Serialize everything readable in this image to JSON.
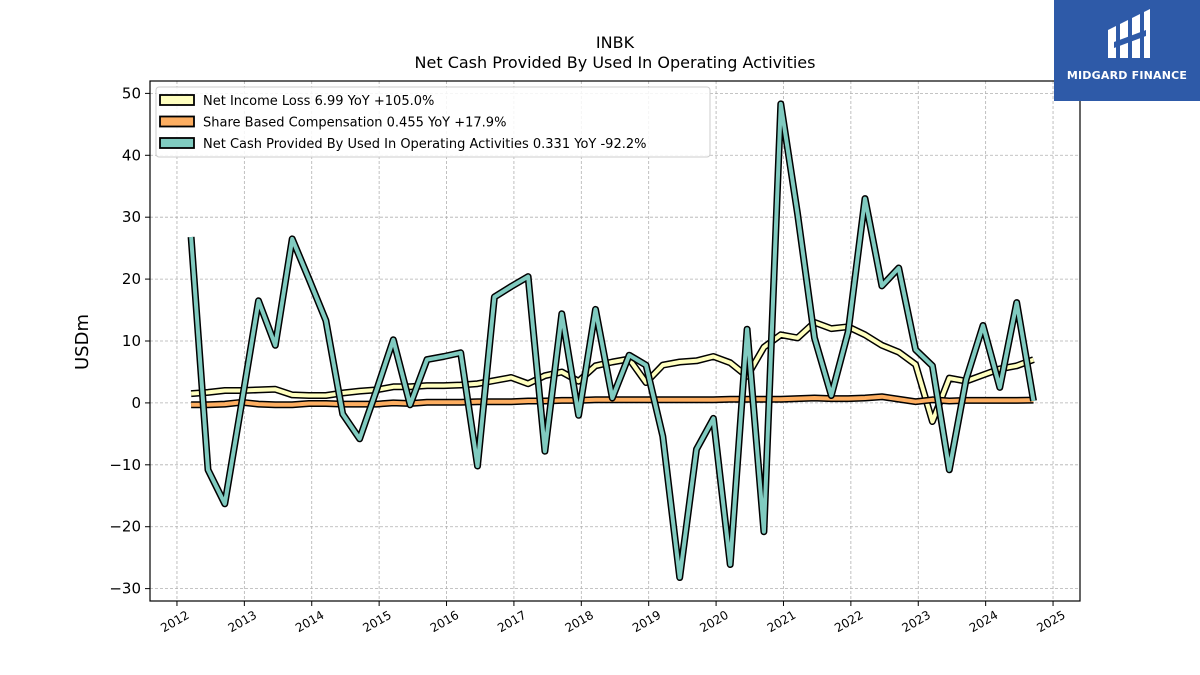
{
  "brand": {
    "name": "MIDGARD FINANCE",
    "bg_color": "#2e5aa8"
  },
  "chart_data": {
    "type": "line",
    "title": "INBK",
    "subtitle": "Net Cash Provided By Used In Operating Activities",
    "xlabel": "",
    "ylabel": "USDm",
    "xlim": [
      2011.6,
      2025.4
    ],
    "ylim": [
      -32,
      52
    ],
    "x_ticks": [
      "2012",
      "2013",
      "2014",
      "2015",
      "2016",
      "2017",
      "2018",
      "2019",
      "2020",
      "2021",
      "2022",
      "2023",
      "2024",
      "2025"
    ],
    "y_ticks": [
      -30,
      -20,
      -10,
      0,
      10,
      20,
      30,
      40,
      50
    ],
    "y_tick_labels": [
      "−30",
      "−20",
      "−10",
      "0",
      "10",
      "20",
      "30",
      "40",
      "50"
    ],
    "grid": true,
    "legend_position": "top-left",
    "series": [
      {
        "name": "Net Income Loss  6.99 YoY +105.0%",
        "color": "#ffffbf",
        "x": [
          2012.21,
          2012.46,
          2012.71,
          2012.96,
          2013.21,
          2013.46,
          2013.71,
          2013.96,
          2014.21,
          2014.46,
          2014.71,
          2014.96,
          2015.21,
          2015.46,
          2015.71,
          2015.96,
          2016.21,
          2016.46,
          2016.71,
          2016.96,
          2017.21,
          2017.46,
          2017.71,
          2017.96,
          2018.21,
          2018.46,
          2018.71,
          2018.96,
          2019.21,
          2019.46,
          2019.71,
          2019.96,
          2020.21,
          2020.46,
          2020.71,
          2020.96,
          2021.21,
          2021.46,
          2021.71,
          2021.96,
          2022.21,
          2022.46,
          2022.71,
          2022.96,
          2023.21,
          2023.46,
          2023.71,
          2023.96,
          2024.21,
          2024.46,
          2024.71
        ],
        "y": [
          1.5,
          1.7,
          2.0,
          2.0,
          2.1,
          2.2,
          1.3,
          1.2,
          1.2,
          1.6,
          1.9,
          2.1,
          2.6,
          2.6,
          2.8,
          2.8,
          2.9,
          3.1,
          3.6,
          4.1,
          3.1,
          4.4,
          5.0,
          3.5,
          6.0,
          6.6,
          7.1,
          3.3,
          6.1,
          6.6,
          6.8,
          7.5,
          6.5,
          4.3,
          9.0,
          11.0,
          10.5,
          13.0,
          12.0,
          12.3,
          11.0,
          9.3,
          8.2,
          6.2,
          -3.0,
          4.0,
          3.5,
          4.5,
          5.5,
          6.0,
          7.0
        ]
      },
      {
        "name": "Share Based Compensation  0.455 YoY +17.9%",
        "color": "#fdae61",
        "x": [
          2012.21,
          2012.46,
          2012.71,
          2012.96,
          2013.21,
          2013.46,
          2013.71,
          2013.96,
          2014.21,
          2014.46,
          2014.71,
          2014.96,
          2015.21,
          2015.46,
          2015.71,
          2015.96,
          2016.21,
          2016.46,
          2016.71,
          2016.96,
          2017.21,
          2017.46,
          2017.71,
          2017.96,
          2018.21,
          2018.46,
          2018.71,
          2018.96,
          2019.21,
          2019.46,
          2019.71,
          2019.96,
          2020.21,
          2020.46,
          2020.71,
          2020.96,
          2021.21,
          2021.46,
          2021.71,
          2021.96,
          2022.21,
          2022.46,
          2022.71,
          2022.96,
          2023.21,
          2023.46,
          2023.71,
          2023.96,
          2024.21,
          2024.46,
          2024.71
        ],
        "y": [
          -0.3,
          -0.3,
          -0.2,
          0.1,
          -0.2,
          -0.3,
          -0.3,
          -0.1,
          -0.1,
          -0.2,
          -0.2,
          -0.2,
          0.0,
          -0.1,
          0.1,
          0.1,
          0.1,
          0.2,
          0.2,
          0.2,
          0.3,
          0.3,
          0.4,
          0.4,
          0.5,
          0.5,
          0.5,
          0.5,
          0.5,
          0.5,
          0.5,
          0.5,
          0.6,
          0.6,
          0.6,
          0.6,
          0.7,
          0.8,
          0.7,
          0.7,
          0.8,
          1.0,
          0.6,
          0.2,
          0.5,
          0.3,
          0.4,
          0.4,
          0.4,
          0.4,
          0.455
        ]
      },
      {
        "name": "Net Cash Provided By Used In Operating Activities  0.331 YoY -92.2%",
        "color": "#80cbc0",
        "x": [
          2012.21,
          2012.46,
          2012.71,
          2012.96,
          2013.21,
          2013.46,
          2013.71,
          2013.96,
          2014.21,
          2014.46,
          2014.71,
          2014.96,
          2015.21,
          2015.46,
          2015.71,
          2015.96,
          2016.21,
          2016.46,
          2016.71,
          2016.96,
          2017.21,
          2017.46,
          2017.71,
          2017.96,
          2018.21,
          2018.46,
          2018.71,
          2018.96,
          2019.21,
          2019.46,
          2019.71,
          2019.96,
          2020.21,
          2020.46,
          2020.71,
          2020.96,
          2021.21,
          2021.46,
          2021.71,
          2021.96,
          2022.21,
          2022.46,
          2022.71,
          2022.96,
          2023.21,
          2023.46,
          2023.71,
          2023.96,
          2024.21,
          2024.46,
          2024.71
        ],
        "y": [
          26.8,
          -10.8,
          -16.3,
          0.0,
          16.5,
          9.3,
          26.5,
          20.0,
          13.3,
          -1.8,
          -5.8,
          2.0,
          10.2,
          -0.3,
          7.0,
          7.5,
          8.1,
          -10.2,
          17.1,
          18.8,
          20.4,
          -7.8,
          14.4,
          -2.0,
          15.1,
          0.8,
          7.7,
          6.1,
          -5.4,
          -28.2,
          -7.5,
          -2.5,
          -26.1,
          11.9,
          -20.8,
          48.3,
          30.5,
          10.5,
          1.2,
          11.5,
          33.0,
          18.9,
          21.8,
          8.6,
          6.0,
          -10.8,
          3.8,
          12.5,
          2.5,
          16.2,
          0.331
        ]
      }
    ]
  }
}
